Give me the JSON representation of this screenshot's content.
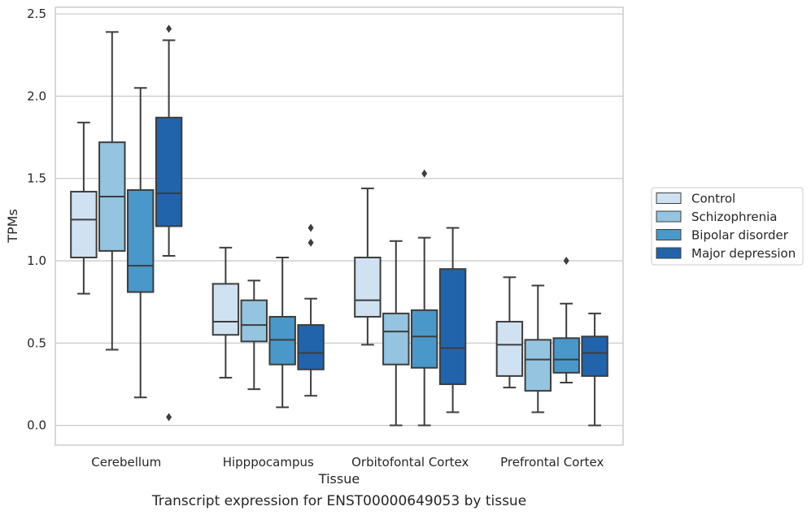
{
  "caption": "Transcript expression for ENST00000649053 by tissue",
  "chart_data": {
    "type": "boxplot",
    "title": "",
    "xlabel": "Tissue",
    "ylabel": "TPMs",
    "ylim": [
      -0.12,
      2.54
    ],
    "yticks": [
      "0.0",
      "0.5",
      "1.0",
      "1.5",
      "2.0",
      "2.5"
    ],
    "grid": "horizontal",
    "legend_position": "right",
    "categories": [
      "Cerebellum",
      "Hipppocampus",
      "Orbitofontal Cortex",
      "Prefrontal Cortex"
    ],
    "series": [
      {
        "name": "Control",
        "color": "#d0e1f2",
        "boxes": [
          {
            "whislo": 0.8,
            "q1": 1.02,
            "med": 1.25,
            "q3": 1.42,
            "whishi": 1.84,
            "fliers": []
          },
          {
            "whislo": 0.29,
            "q1": 0.55,
            "med": 0.63,
            "q3": 0.86,
            "whishi": 1.08,
            "fliers": []
          },
          {
            "whislo": 0.49,
            "q1": 0.66,
            "med": 0.76,
            "q3": 1.02,
            "whishi": 1.44,
            "fliers": []
          },
          {
            "whislo": 0.23,
            "q1": 0.3,
            "med": 0.49,
            "q3": 0.63,
            "whishi": 0.9,
            "fliers": []
          }
        ]
      },
      {
        "name": "Schizophrenia",
        "color": "#94c4df",
        "boxes": [
          {
            "whislo": 0.46,
            "q1": 1.06,
            "med": 1.39,
            "q3": 1.72,
            "whishi": 2.39,
            "fliers": []
          },
          {
            "whislo": 0.22,
            "q1": 0.51,
            "med": 0.61,
            "q3": 0.76,
            "whishi": 0.88,
            "fliers": []
          },
          {
            "whislo": 0.0,
            "q1": 0.37,
            "med": 0.57,
            "q3": 0.68,
            "whishi": 1.12,
            "fliers": []
          },
          {
            "whislo": 0.08,
            "q1": 0.21,
            "med": 0.4,
            "q3": 0.52,
            "whishi": 0.85,
            "fliers": []
          }
        ]
      },
      {
        "name": "Bipolar disorder",
        "color": "#4a98c9",
        "boxes": [
          {
            "whislo": 0.17,
            "q1": 0.81,
            "med": 0.97,
            "q3": 1.43,
            "whishi": 2.05,
            "fliers": []
          },
          {
            "whislo": 0.11,
            "q1": 0.37,
            "med": 0.52,
            "q3": 0.66,
            "whishi": 1.02,
            "fliers": []
          },
          {
            "whislo": 0.0,
            "q1": 0.35,
            "med": 0.54,
            "q3": 0.7,
            "whishi": 1.14,
            "fliers": [
              1.53
            ]
          },
          {
            "whislo": 0.26,
            "q1": 0.32,
            "med": 0.4,
            "q3": 0.53,
            "whishi": 0.74,
            "fliers": [
              1.0
            ]
          }
        ]
      },
      {
        "name": "Major depression",
        "color": "#2164ab",
        "boxes": [
          {
            "whislo": 1.03,
            "q1": 1.21,
            "med": 1.41,
            "q3": 1.87,
            "whishi": 2.34,
            "fliers": [
              2.41,
              0.05
            ]
          },
          {
            "whislo": 0.18,
            "q1": 0.34,
            "med": 0.44,
            "q3": 0.61,
            "whishi": 0.77,
            "fliers": [
              1.11,
              1.2
            ]
          },
          {
            "whislo": 0.08,
            "q1": 0.25,
            "med": 0.47,
            "q3": 0.95,
            "whishi": 1.2,
            "fliers": []
          },
          {
            "whislo": 0.0,
            "q1": 0.3,
            "med": 0.44,
            "q3": 0.54,
            "whishi": 0.68,
            "fliers": []
          }
        ]
      }
    ]
  }
}
